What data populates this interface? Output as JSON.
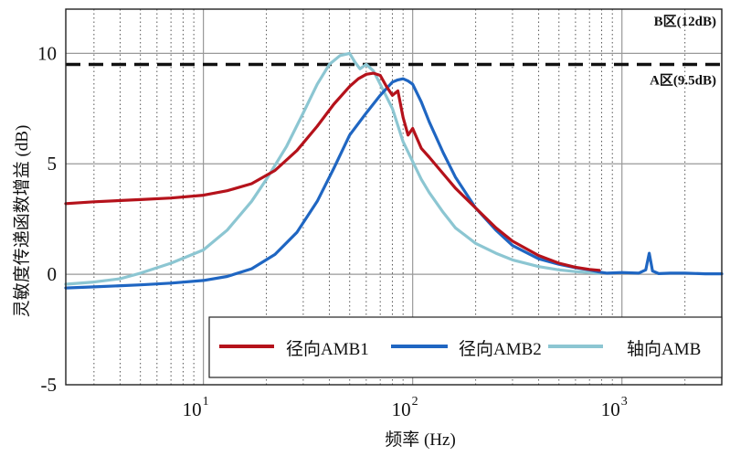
{
  "chart_data": {
    "type": "line",
    "xscale": "log",
    "xlim": [
      2.2,
      3000
    ],
    "ylim": [
      -5,
      12
    ],
    "xlabel": "频率 (Hz)",
    "ylabel": "灵敏度传递函数增益 (dB)",
    "xticks": [
      {
        "base": "10",
        "exp": "1",
        "value": 10
      },
      {
        "base": "10",
        "exp": "2",
        "value": 100
      },
      {
        "base": "10",
        "exp": "3",
        "value": 1000
      }
    ],
    "yticks": [
      {
        "label": "-5",
        "value": -5
      },
      {
        "label": "0",
        "value": 0
      },
      {
        "label": "5",
        "value": 5
      },
      {
        "label": "10",
        "value": 10
      }
    ],
    "grid": true,
    "legend_position": "bottom-right",
    "reference_lines": [
      {
        "label": "B区(12dB)",
        "value": 12,
        "style": "solid"
      },
      {
        "label": "A区(9.5dB)",
        "value": 9.5,
        "style": "dashed"
      }
    ],
    "series": [
      {
        "name": "径向AMB1",
        "color": "#b5121b",
        "x": [
          2.2,
          3,
          5,
          7,
          10,
          13,
          17,
          22,
          28,
          35,
          42,
          50,
          55,
          60,
          65,
          70,
          75,
          80,
          85,
          90,
          95,
          100,
          110,
          120,
          140,
          160,
          200,
          250,
          300,
          400,
          500,
          600,
          700,
          780
        ],
        "y": [
          3.2,
          3.28,
          3.38,
          3.45,
          3.58,
          3.78,
          4.1,
          4.7,
          5.6,
          6.7,
          7.7,
          8.5,
          8.85,
          9.05,
          9.1,
          9.0,
          8.5,
          8.1,
          8.3,
          7.1,
          6.3,
          6.6,
          5.7,
          5.3,
          4.55,
          3.9,
          3.0,
          2.1,
          1.5,
          0.85,
          0.5,
          0.32,
          0.22,
          0.18
        ]
      },
      {
        "name": "径向AMB2",
        "color": "#1f66c2",
        "x": [
          2.2,
          3,
          5,
          7,
          10,
          13,
          17,
          22,
          28,
          35,
          42,
          50,
          60,
          70,
          80,
          85,
          90,
          95,
          100,
          110,
          120,
          140,
          160,
          200,
          250,
          300,
          400,
          500,
          600,
          700,
          780,
          850,
          1000,
          1200,
          1300,
          1350,
          1400,
          1500,
          1700,
          2000,
          2500,
          3000
        ],
        "y": [
          -0.62,
          -0.57,
          -0.48,
          -0.4,
          -0.28,
          -0.1,
          0.25,
          0.9,
          1.9,
          3.3,
          4.8,
          6.3,
          7.3,
          8.1,
          8.7,
          8.8,
          8.85,
          8.75,
          8.6,
          7.8,
          6.9,
          5.5,
          4.4,
          3.0,
          2.0,
          1.3,
          0.7,
          0.45,
          0.3,
          0.2,
          0.1,
          0.05,
          0.08,
          0.05,
          0.2,
          0.95,
          0.15,
          0.03,
          0.05,
          0.05,
          0.02,
          0.02
        ]
      },
      {
        "name": "轴向AMB",
        "color": "#8cc6d2",
        "x": [
          2.2,
          3,
          4,
          5,
          7,
          10,
          13,
          17,
          20,
          25,
          30,
          35,
          40,
          45,
          50,
          53,
          56,
          60,
          65,
          70,
          80,
          90,
          100,
          110,
          120,
          140,
          160,
          200,
          250,
          300,
          400,
          500,
          600,
          700,
          780
        ],
        "y": [
          -0.45,
          -0.35,
          -0.2,
          0.05,
          0.5,
          1.1,
          2.0,
          3.3,
          4.3,
          5.8,
          7.3,
          8.6,
          9.5,
          9.9,
          10.0,
          9.6,
          9.3,
          9.5,
          9.2,
          8.6,
          7.5,
          6.0,
          5.1,
          4.3,
          3.7,
          2.8,
          2.1,
          1.4,
          0.95,
          0.65,
          0.35,
          0.2,
          0.12,
          0.08,
          0.05
        ]
      }
    ]
  }
}
